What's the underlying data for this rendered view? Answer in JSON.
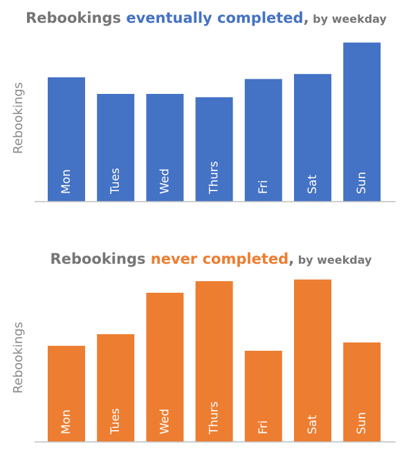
{
  "chart_data": [
    {
      "type": "bar",
      "title": {
        "prefix": "Rebookings ",
        "highlight": "eventually completed",
        "comma": ",",
        "suffix": " by weekday"
      },
      "ylabel": "Rebookings",
      "categories": [
        "Mon",
        "Tues",
        "Wed",
        "Thurs",
        "Fri",
        "Sat",
        "Sun"
      ],
      "values": [
        0.75,
        0.65,
        0.65,
        0.63,
        0.74,
        0.77,
        0.96
      ],
      "ylim": [
        0,
        1
      ],
      "color": "#4472c4",
      "grid": false,
      "legend": "none"
    },
    {
      "type": "bar",
      "title": {
        "prefix": "Rebookings ",
        "highlight": "never completed",
        "comma": ",",
        "suffix": " by weekday"
      },
      "ylabel": "Rebookings",
      "categories": [
        "Mon",
        "Tues",
        "Wed",
        "Thurs",
        "Fri",
        "Sat",
        "Sun"
      ],
      "values": [
        0.58,
        0.65,
        0.9,
        0.97,
        0.55,
        0.98,
        0.6
      ],
      "ylim": [
        0,
        1
      ],
      "color": "#ed7d31",
      "grid": false,
      "legend": "none"
    }
  ],
  "colors": {
    "title_gray": "#757575",
    "axis_line": "#bfbfbf"
  }
}
